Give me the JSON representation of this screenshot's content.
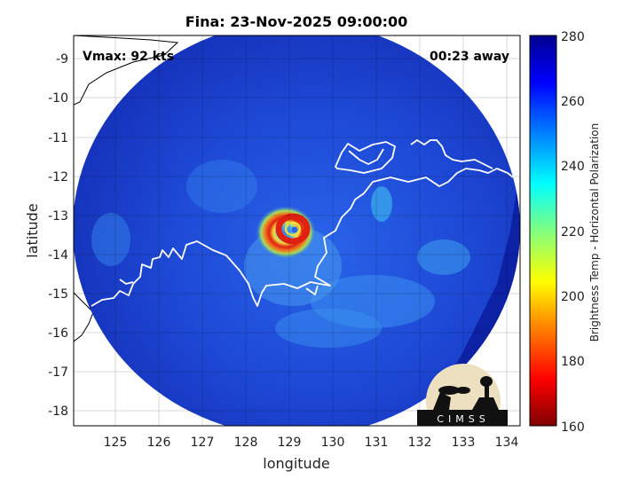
{
  "title": "Fina: 23-Nov-2025 09:00:00",
  "vmax_label": "Vmax: 92 kts",
  "time_away_label": "00:23 away",
  "axes": {
    "xlabel": "longitude",
    "ylabel": "latitude",
    "x_ticks": [
      "125",
      "126",
      "127",
      "128",
      "129",
      "130",
      "131",
      "132",
      "133",
      "134"
    ],
    "y_ticks": [
      "-9",
      "-10",
      "-11",
      "-12",
      "-13",
      "-14",
      "-15",
      "-16",
      "-17",
      "-18"
    ]
  },
  "colorbar": {
    "label": "Brightness Temp - Horizontal Polarization",
    "ticks": [
      "280",
      "260",
      "240",
      "220",
      "200",
      "180",
      "160"
    ],
    "range": [
      160,
      280
    ],
    "colormap": [
      "#7f0000",
      "#ff0000",
      "#ff8000",
      "#ffff00",
      "#80ff80",
      "#00ffff",
      "#0080ff",
      "#0000ff",
      "#00008f"
    ]
  },
  "logo": {
    "text": "CIMSS"
  },
  "colors": {
    "swath_cold_bg": "#1a2fc4",
    "swath_outer": "#0c1ea0",
    "swath_mid": "#2255e6",
    "swath_light": "#3aa0f0",
    "eyewall_red": "#e02010",
    "eyewall_orange": "#f08020",
    "eyewall_yellow": "#f0e040",
    "coast": "#ffffff",
    "coast_outside": "#000000"
  }
}
